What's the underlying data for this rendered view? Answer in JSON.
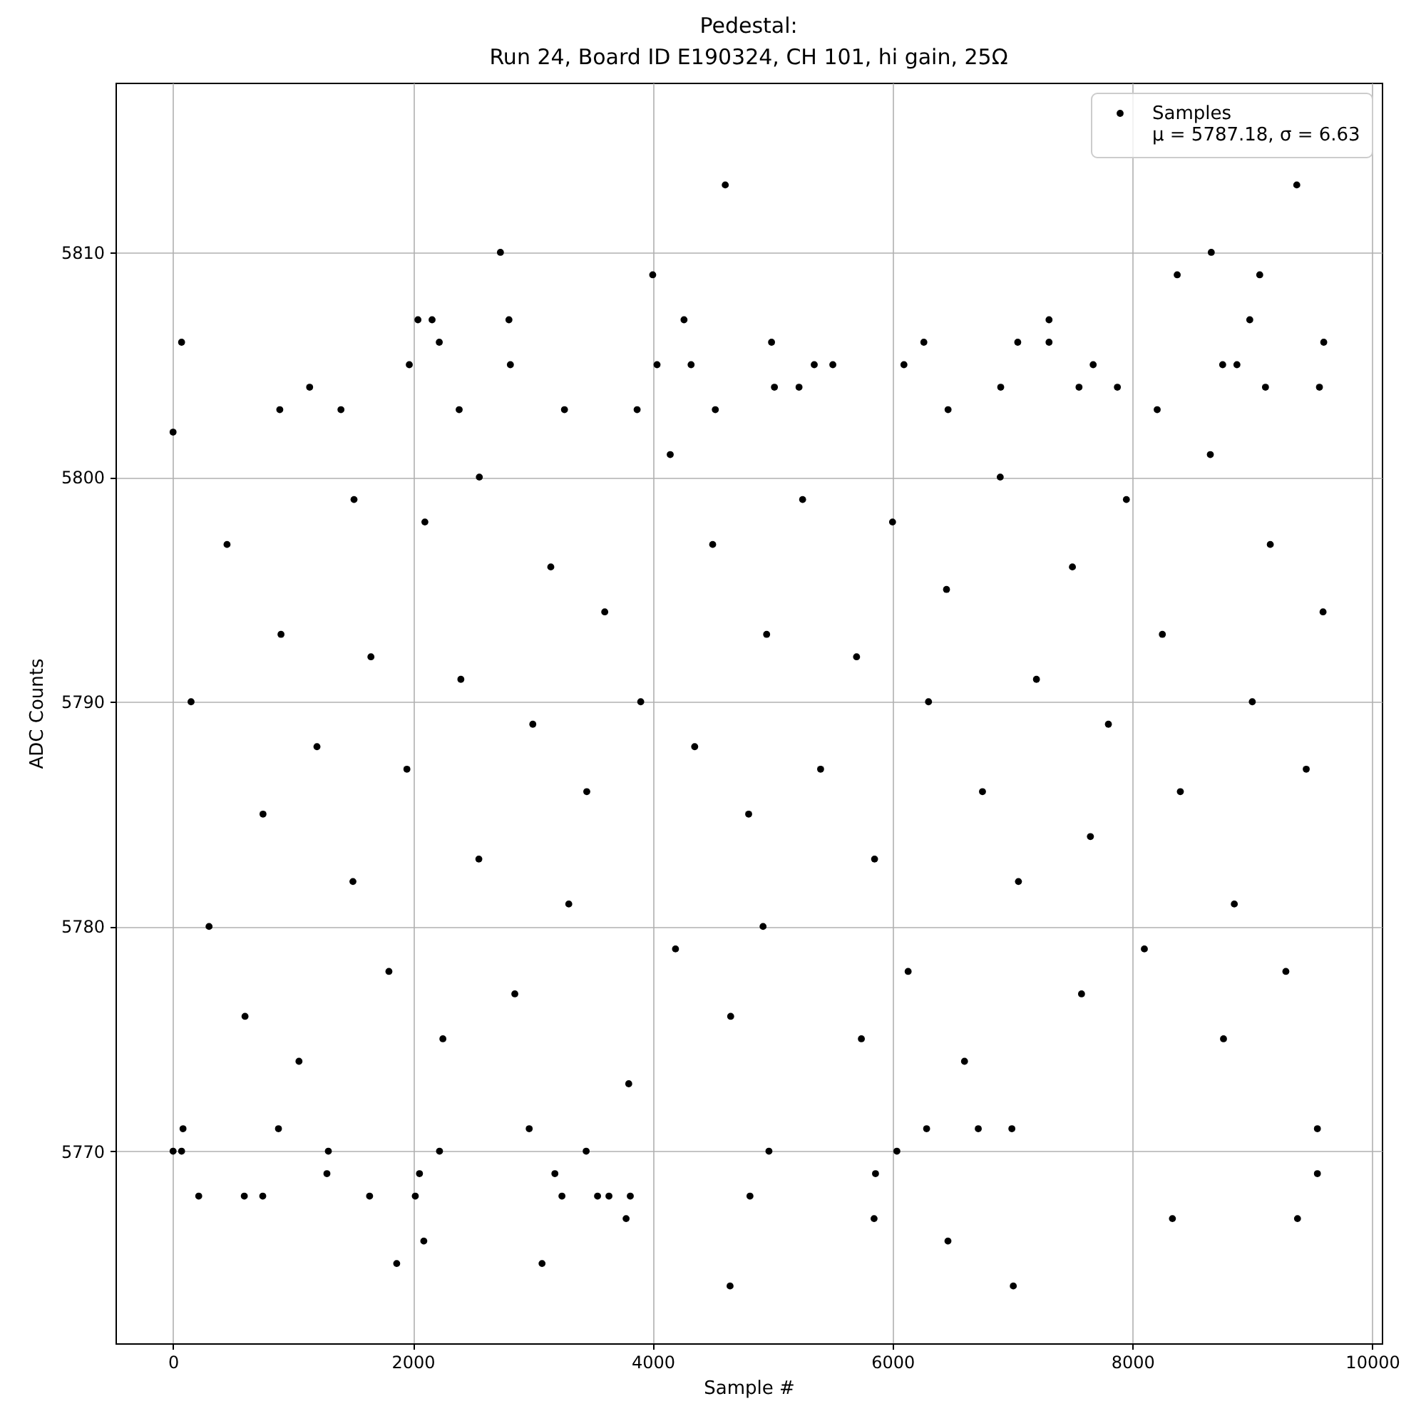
{
  "chart_data": {
    "type": "scatter",
    "title": "Pedestal:\nRun 24, Board ID E190324, CH 101, hi gain, 25Ω",
    "xlabel": "Sample #",
    "ylabel": "ADC Counts",
    "xlim": [
      -480,
      10080
    ],
    "ylim": [
      5761.45,
      5817.55
    ],
    "xticks": [
      0,
      2000,
      4000,
      6000,
      8000,
      10000
    ],
    "yticks": [
      5770,
      5780,
      5790,
      5800,
      5810
    ],
    "grid": true,
    "legend": "top right",
    "marker": "circle",
    "x": [
      71,
      4605,
      2730,
      4000,
      2042,
      2160,
      2220,
      2801,
      2813,
      1970,
      4261,
      4320,
      4036,
      1139,
      890,
      1400,
      2386,
      3264,
      3870,
      4522,
      9371,
      8658,
      8374,
      9062,
      8979,
      7305,
      7305,
      4991,
      6261,
      7044,
      9596,
      5347,
      5502,
      6095,
      7673,
      8753,
      8872,
      5015,
      5220,
      6902,
      7555,
      7875,
      9110,
      9560,
      6463,
      8207,
      1865,
      3077,
      2091,
      4645,
      3778,
      214,
      594,
      748,
      1639,
      2020,
      3243,
      3540,
      3635,
      3813,
      4811,
      1283,
      2055,
      3184,
      0,
      71,
      1295,
      2222,
      3445,
      4969,
      7007,
      6462,
      5846,
      8334,
      9377,
      5858,
      9543,
      6036,
      83,
      879,
      2970,
      6284,
      6715,
      6995,
      9543,
      0,
      150,
      300,
      450,
      600,
      750,
      900,
      1050,
      1200,
      1509,
      1500,
      1650,
      1800,
      1950,
      2100,
      2250,
      2400,
      2550,
      2554,
      2850,
      3000,
      3150,
      3300,
      3450,
      3600,
      3800,
      3900,
      4146,
      4190,
      4350,
      4500,
      4650,
      4800,
      4920,
      4950,
      5250,
      5400,
      5740,
      5700,
      5850,
      6000,
      6130,
      6300,
      6450,
      6600,
      6750,
      6898,
      7050,
      7200,
      7576,
      7500,
      7650,
      7800,
      7950,
      8100,
      8250,
      8400,
      8760,
      8650,
      8850,
      9000,
      9150,
      9280,
      9450,
      9590
    ],
    "series": [
      {
        "name": "Samples\nμ = 5787.18, σ = 6.63",
        "color": "#000000",
        "values": [
          5806,
          5813,
          5810,
          5809,
          5807,
          5807,
          5806,
          5807,
          5805,
          5805,
          5807,
          5805,
          5805,
          5804,
          5803,
          5803,
          5803,
          5803,
          5803,
          5803,
          5813,
          5810,
          5809,
          5809,
          5807,
          5807,
          5806,
          5806,
          5806,
          5806,
          5806,
          5805,
          5805,
          5805,
          5805,
          5805,
          5805,
          5804,
          5804,
          5804,
          5804,
          5804,
          5804,
          5804,
          5803,
          5803,
          5765,
          5765,
          5766,
          5764,
          5767,
          5768,
          5768,
          5768,
          5768,
          5768,
          5768,
          5768,
          5768,
          5768,
          5768,
          5769,
          5769,
          5769,
          5770,
          5770,
          5770,
          5770,
          5770,
          5770,
          5764,
          5766,
          5767,
          5767,
          5767,
          5769,
          5769,
          5770,
          5771,
          5771,
          5771,
          5771,
          5771,
          5771,
          5771,
          5802,
          5790,
          5780,
          5797,
          5776,
          5785,
          5793,
          5774,
          5788,
          5799,
          5782,
          5792,
          5778,
          5787,
          5798,
          5775,
          5791,
          5783,
          5800,
          5777,
          5789,
          5796,
          5781,
          5786,
          5794,
          5773,
          5790,
          5801,
          5779,
          5788,
          5797,
          5776,
          5785,
          5780,
          5793,
          5799,
          5787,
          5775,
          5792,
          5783,
          5798,
          5778,
          5790,
          5795,
          5774,
          5786,
          5800,
          5782,
          5791,
          5777,
          5796,
          5784,
          5789,
          5799,
          5779,
          5793,
          5786,
          5775,
          5801,
          5781,
          5790,
          5797,
          5778,
          5787,
          5794
        ]
      }
    ]
  }
}
